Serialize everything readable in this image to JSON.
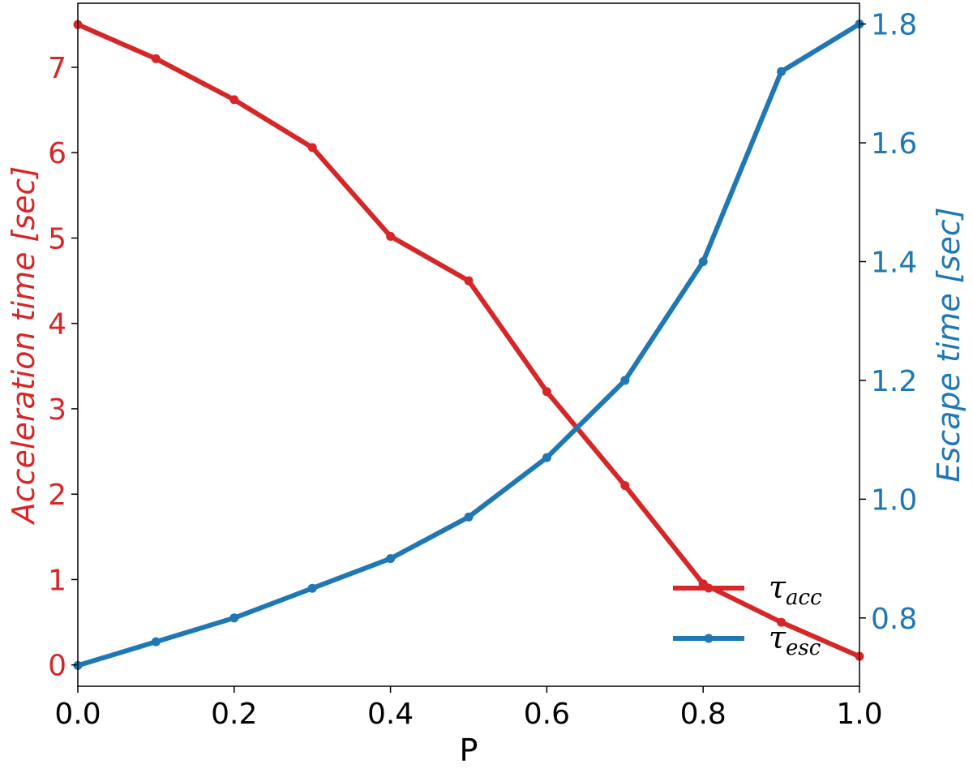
{
  "chart_data": {
    "type": "line",
    "xlabel": "P",
    "ylabel_left": "Acceleration time [sec]",
    "ylabel_right": "Escape time [sec]",
    "xlim": [
      0.0,
      1.0
    ],
    "ylim_left": [
      -0.25,
      7.75
    ],
    "ylim_right": [
      0.685,
      1.835
    ],
    "x_ticks": [
      "0.0",
      "0.2",
      "0.4",
      "0.6",
      "0.8",
      "1.0"
    ],
    "y_ticks_left": [
      "0",
      "1",
      "2",
      "3",
      "4",
      "5",
      "6",
      "7"
    ],
    "y_ticks_right": [
      "0.8",
      "1.0",
      "1.2",
      "1.4",
      "1.6",
      "1.8"
    ],
    "x": [
      0.0,
      0.1,
      0.2,
      0.3,
      0.4,
      0.5,
      0.6,
      0.7,
      0.8,
      0.9,
      1.0
    ],
    "series": [
      {
        "name": "τacc",
        "name_symbol": "τ",
        "name_sub": "acc",
        "axis": "left",
        "color": "#d62728",
        "values": [
          7.5,
          7.1,
          6.62,
          6.06,
          5.02,
          4.5,
          3.2,
          2.1,
          0.95,
          0.5,
          0.1
        ]
      },
      {
        "name": "τesc",
        "name_symbol": "τ",
        "name_sub": "esc",
        "axis": "right",
        "color": "#1f77b4",
        "values": [
          0.72,
          0.76,
          0.8,
          0.85,
          0.9,
          0.97,
          1.07,
          1.2,
          1.4,
          1.72,
          1.8
        ]
      }
    ],
    "grid": false,
    "legend_position": "lower-right"
  }
}
